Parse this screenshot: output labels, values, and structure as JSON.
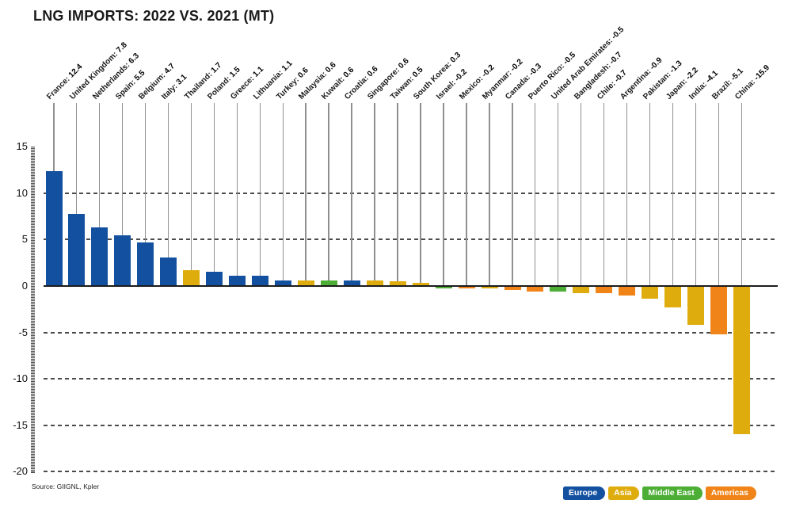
{
  "title": "LNG IMPORTS: 2022 VS. 2021 (MT)",
  "source": "Source: GIIGNL, Kpler",
  "chart_data": {
    "type": "bar",
    "title": "LNG IMPORTS: 2022 VS. 2021 (MT)",
    "unit": "MT",
    "ylim": [
      -20,
      15
    ],
    "yticks": [
      15,
      10,
      5,
      0,
      -5,
      -10,
      -15,
      -20
    ],
    "grid": "horizontal dashed gridlines at ticks except 15, solid line at zero",
    "legend_position": "bottom-right",
    "legend": [
      "Europe",
      "Asia",
      "Middle East",
      "Americas"
    ],
    "region_colors": {
      "Europe": "#1351A0",
      "Asia": "#DFAC0E",
      "Middle East": "#4CAE35",
      "Americas": "#F08418"
    },
    "series": [
      {
        "country": "France",
        "value": 12.4,
        "region": "Europe"
      },
      {
        "country": "United Kingdom",
        "value": 7.8,
        "region": "Europe"
      },
      {
        "country": "Netherlands",
        "value": 6.3,
        "region": "Europe"
      },
      {
        "country": "Spain",
        "value": 5.5,
        "region": "Europe"
      },
      {
        "country": "Belgium",
        "value": 4.7,
        "region": "Europe"
      },
      {
        "country": "Italy",
        "value": 3.1,
        "region": "Europe"
      },
      {
        "country": "Thailand",
        "value": 1.7,
        "region": "Asia"
      },
      {
        "country": "Poland",
        "value": 1.5,
        "region": "Europe"
      },
      {
        "country": "Greece",
        "value": 1.1,
        "region": "Europe"
      },
      {
        "country": "Lithuania",
        "value": 1.1,
        "region": "Europe"
      },
      {
        "country": "Turkey",
        "value": 0.6,
        "region": "Europe"
      },
      {
        "country": "Malaysia",
        "value": 0.6,
        "region": "Asia"
      },
      {
        "country": "Kuwait",
        "value": 0.6,
        "region": "Middle East"
      },
      {
        "country": "Croatia",
        "value": 0.6,
        "region": "Europe"
      },
      {
        "country": "Singapore",
        "value": 0.6,
        "region": "Asia"
      },
      {
        "country": "Taiwan",
        "value": 0.5,
        "region": "Asia"
      },
      {
        "country": "South Korea",
        "value": 0.3,
        "region": "Asia"
      },
      {
        "country": "Israel",
        "value": -0.2,
        "region": "Middle East"
      },
      {
        "country": "Mexico",
        "value": -0.2,
        "region": "Americas"
      },
      {
        "country": "Myanmar",
        "value": -0.2,
        "region": "Asia"
      },
      {
        "country": "Canada",
        "value": -0.3,
        "region": "Americas"
      },
      {
        "country": "Puerto Rico",
        "value": -0.5,
        "region": "Americas"
      },
      {
        "country": "United Arab Emirates",
        "value": -0.5,
        "region": "Middle East"
      },
      {
        "country": "Bangladesh",
        "value": -0.7,
        "region": "Asia"
      },
      {
        "country": "Chile",
        "value": -0.7,
        "region": "Americas"
      },
      {
        "country": "Argentina",
        "value": -0.9,
        "region": "Americas"
      },
      {
        "country": "Pakistan",
        "value": -1.3,
        "region": "Asia"
      },
      {
        "country": "Japan",
        "value": -2.2,
        "region": "Asia"
      },
      {
        "country": "India",
        "value": -4.1,
        "region": "Asia"
      },
      {
        "country": "Brazil",
        "value": -5.1,
        "region": "Americas"
      },
      {
        "country": "China",
        "value": -15.9,
        "region": "Asia"
      }
    ]
  }
}
